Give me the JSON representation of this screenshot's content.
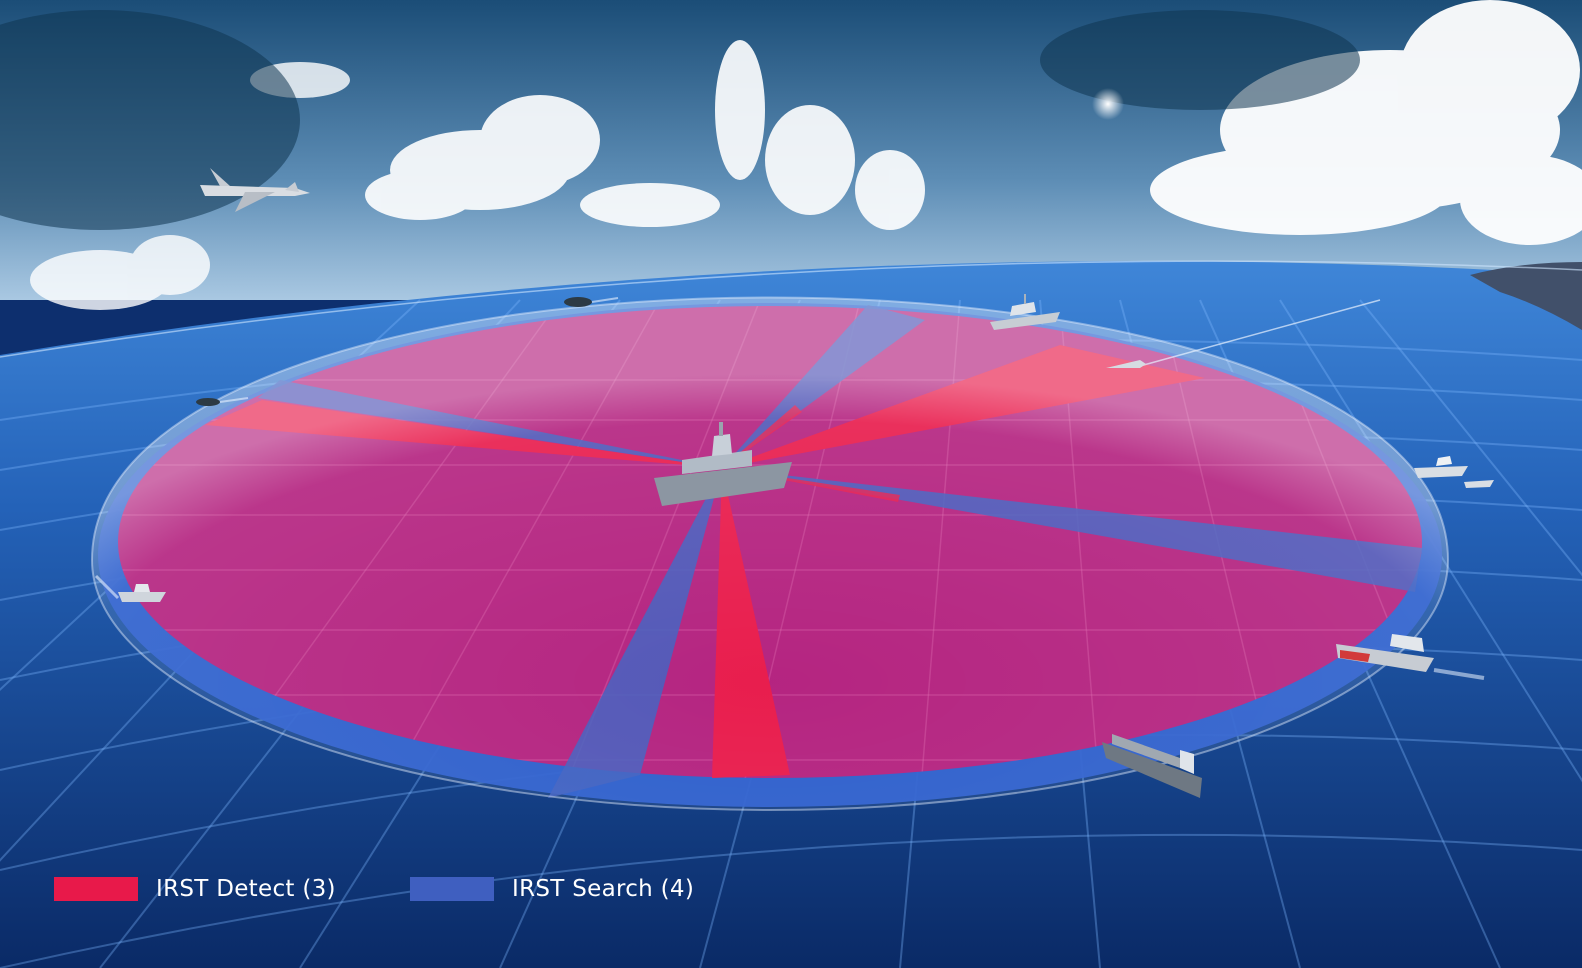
{
  "legend": [
    {
      "label": "IRST Detect (3)",
      "color": "#e8194a"
    },
    {
      "label": "IRST Search (4)",
      "color": "#3f5fc0"
    }
  ],
  "colors": {
    "sky_top": "#1f5b86",
    "sky_horizon": "#a9c8e2",
    "sea_near": "#0c3579",
    "sea_far": "#2f6fcc",
    "coverage_disc": "#b3207e",
    "outer_ring": "#2c5fcf",
    "detect": "#e8194a",
    "search": "#3f5fc0"
  },
  "icons": [
    "fighter-jet-icon",
    "central-frigate-icon",
    "frigate-icon",
    "patrol-boat-icon",
    "speedboat-icon",
    "missile-icon",
    "cargo-ship-icon",
    "container-ship-icon",
    "coastline-icon",
    "sun-icon"
  ]
}
